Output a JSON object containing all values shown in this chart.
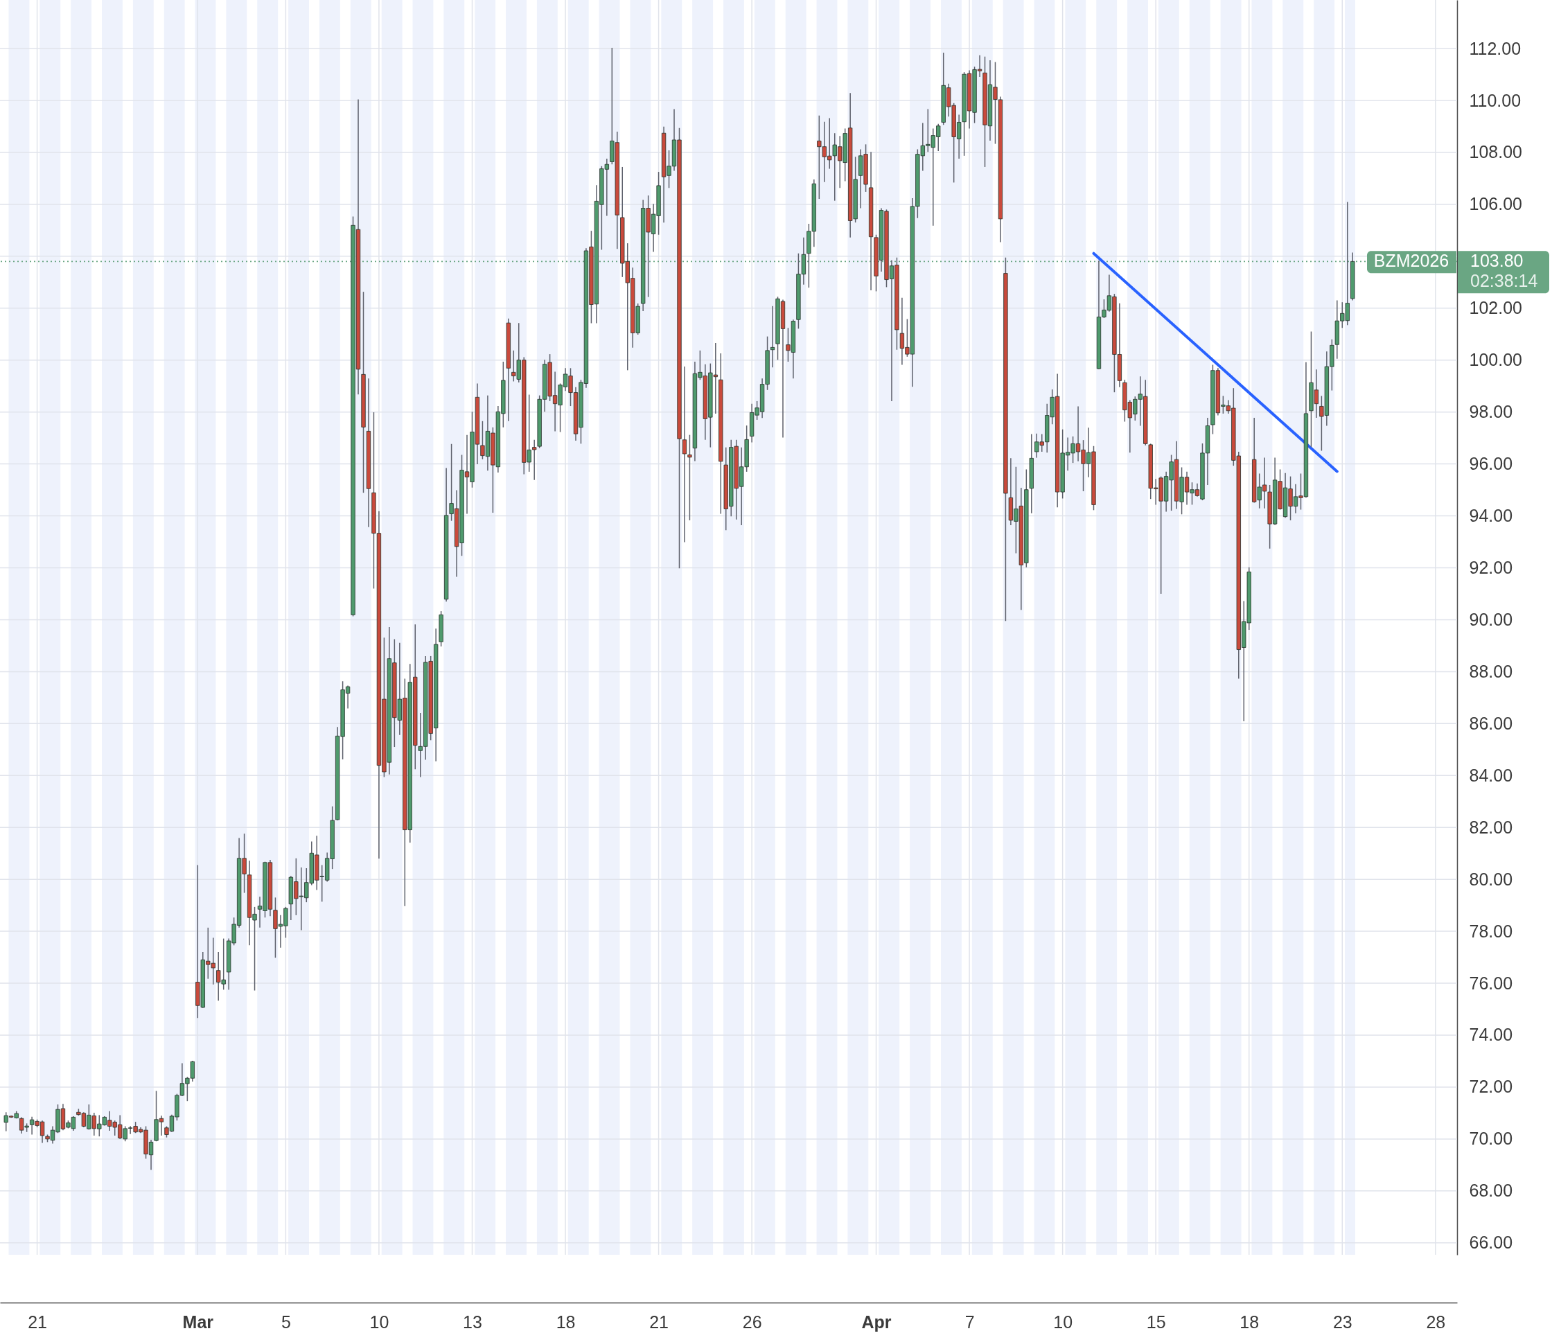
{
  "chart_data": {
    "type": "candlestick",
    "categories": [
      null,
      null,
      null,
      null,
      null,
      null,
      "21",
      null,
      null,
      null,
      null,
      null,
      null,
      null,
      null,
      null,
      null,
      null,
      null,
      null,
      null,
      null,
      null,
      null,
      null,
      null,
      null,
      null,
      null,
      null,
      null,
      null,
      null,
      null,
      null,
      null,
      null,
      "Mar",
      null,
      null,
      null,
      null,
      null,
      null,
      null,
      null,
      null,
      null,
      null,
      null,
      null,
      null,
      null,
      null,
      "5",
      null,
      null,
      null,
      null,
      null,
      null,
      null,
      null,
      null,
      null,
      null,
      null,
      null,
      null,
      null,
      null,
      null,
      "10",
      null,
      null,
      null,
      null,
      null,
      null,
      null,
      null,
      null,
      null,
      null,
      null,
      null,
      null,
      null,
      null,
      null,
      "13",
      null,
      null,
      null,
      null,
      null,
      null,
      null,
      null,
      null,
      null,
      null,
      null,
      null,
      null,
      null,
      null,
      null,
      "18",
      null,
      null,
      null,
      null,
      null,
      null,
      null,
      null,
      null,
      null,
      null,
      null,
      null,
      null,
      null,
      null,
      null,
      "21",
      null,
      null,
      null,
      null,
      null,
      null,
      null,
      null,
      null,
      null,
      null,
      null,
      null,
      null,
      null,
      null,
      null,
      "26",
      null,
      null,
      null,
      null,
      null,
      null,
      null,
      null,
      null,
      null,
      null,
      null,
      null,
      null,
      null,
      null,
      null,
      null,
      null,
      null,
      null,
      null,
      null,
      "Apr",
      null,
      null,
      null,
      null,
      null,
      null,
      null,
      null,
      null,
      null,
      null,
      null,
      null,
      null,
      null,
      null,
      null,
      "7",
      null,
      null,
      null,
      null,
      null,
      null,
      null,
      null,
      null,
      null,
      null,
      null,
      null,
      null,
      null,
      null,
      null,
      "10",
      null,
      null,
      null,
      null,
      null,
      null,
      null,
      null,
      null,
      null,
      null,
      null,
      null,
      null,
      null,
      null,
      null,
      "15",
      null,
      null,
      null,
      null,
      null,
      null,
      null,
      null,
      null,
      null,
      null,
      null,
      null,
      null,
      null,
      null,
      null,
      "18",
      null,
      null,
      null,
      null,
      null,
      null,
      null,
      null,
      null,
      null,
      null,
      null,
      null,
      null,
      null,
      null,
      null,
      "23",
      null,
      null,
      null,
      null,
      null,
      null,
      null,
      null,
      null,
      null,
      null,
      null,
      null,
      null,
      null,
      null,
      null,
      "28",
      null,
      null,
      null
    ],
    "ohlc": [
      [
        70.64,
        71.03,
        70.3,
        70.9
      ],
      [
        70.88,
        70.9,
        70.82,
        70.84
      ],
      [
        70.81,
        71.07,
        70.79,
        70.98
      ],
      [
        70.79,
        70.84,
        70.21,
        70.34
      ],
      [
        70.45,
        70.6,
        70.27,
        70.5
      ],
      [
        70.55,
        70.86,
        70.17,
        70.74
      ],
      [
        70.68,
        70.75,
        70.45,
        70.52
      ],
      [
        70.66,
        70.71,
        69.85,
        70.13
      ],
      [
        70.1,
        70.17,
        69.88,
        70.0
      ],
      [
        69.95,
        70.49,
        69.82,
        70.34
      ],
      [
        70.27,
        71.33,
        70.23,
        71.14
      ],
      [
        71.17,
        71.35,
        70.34,
        70.39
      ],
      [
        70.45,
        70.71,
        70.41,
        70.62
      ],
      [
        70.4,
        70.88,
        70.32,
        70.84
      ],
      [
        71.03,
        71.16,
        70.9,
        70.94
      ],
      [
        70.99,
        71.03,
        70.45,
        70.49
      ],
      [
        70.39,
        71.33,
        70.36,
        70.92
      ],
      [
        70.89,
        71.01,
        70.13,
        70.4
      ],
      [
        70.39,
        70.92,
        70.1,
        70.58
      ],
      [
        70.54,
        70.88,
        70.52,
        70.84
      ],
      [
        70.72,
        71.07,
        70.32,
        70.49
      ],
      [
        70.65,
        70.71,
        70.13,
        70.45
      ],
      [
        70.55,
        70.92,
        70.0,
        70.04
      ],
      [
        70.0,
        70.49,
        69.91,
        70.4
      ],
      [
        70.41,
        70.5,
        70.19,
        70.43
      ],
      [
        70.49,
        70.66,
        70.23,
        70.27
      ],
      [
        70.37,
        70.45,
        70.23,
        70.27
      ],
      [
        70.34,
        70.49,
        69.24,
        69.42
      ],
      [
        69.39,
        69.97,
        68.81,
        69.88
      ],
      [
        69.94,
        71.85,
        69.91,
        70.75
      ],
      [
        70.79,
        70.9,
        70.13,
        70.66
      ],
      [
        70.43,
        70.49,
        70.06,
        70.17
      ],
      [
        70.3,
        70.94,
        70.27,
        70.88
      ],
      [
        70.85,
        71.74,
        70.71,
        71.68
      ],
      [
        71.68,
        72.92,
        71.65,
        72.14
      ],
      [
        72.13,
        72.39,
        71.46,
        72.34
      ],
      [
        72.34,
        73.01,
        72.21,
        72.98
      ],
      [
        76.04,
        80.55,
        74.66,
        75.14
      ],
      [
        75.07,
        77.2,
        75.05,
        76.9
      ],
      [
        76.85,
        78.14,
        76.17,
        76.72
      ],
      [
        76.77,
        77.75,
        75.95,
        76.59
      ],
      [
        76.49,
        77.2,
        75.33,
        76.04
      ],
      [
        75.97,
        77.72,
        75.75,
        76.13
      ],
      [
        76.43,
        77.72,
        75.75,
        77.63
      ],
      [
        77.55,
        78.53,
        77.46,
        78.27
      ],
      [
        78.23,
        81.59,
        78.14,
        80.81
      ],
      [
        80.81,
        81.76,
        79.48,
        80.21
      ],
      [
        80.17,
        80.72,
        77.46,
        78.53
      ],
      [
        78.43,
        78.94,
        75.72,
        78.66
      ],
      [
        78.85,
        79.33,
        78.14,
        78.97
      ],
      [
        78.79,
        80.68,
        78.53,
        80.65
      ],
      [
        80.65,
        80.75,
        78.58,
        78.85
      ],
      [
        78.81,
        79.3,
        76.98,
        78.1
      ],
      [
        78.19,
        78.62,
        77.37,
        78.27
      ],
      [
        78.21,
        78.94,
        77.75,
        78.88
      ],
      [
        79.05,
        80.13,
        78.43,
        80.08
      ],
      [
        79.91,
        80.81,
        78.62,
        79.26
      ],
      [
        79.33,
        80.46,
        78.04,
        79.36
      ],
      [
        79.29,
        80.43,
        79.12,
        79.88
      ],
      [
        79.85,
        81.46,
        79.78,
        81.01
      ],
      [
        80.94,
        81.68,
        79.59,
        79.97
      ],
      [
        80.1,
        80.55,
        79.14,
        80.12
      ],
      [
        79.97,
        81.03,
        79.91,
        80.81
      ],
      [
        80.79,
        82.81,
        80.4,
        82.27
      ],
      [
        82.3,
        85.87,
        82.27,
        85.52
      ],
      [
        85.5,
        87.63,
        84.62,
        87.3
      ],
      [
        87.17,
        87.46,
        86.58,
        87.42
      ],
      [
        90.19,
        105.53,
        90.13,
        105.19
      ],
      [
        105.03,
        110.04,
        98.68,
        99.65
      ],
      [
        99.45,
        102.63,
        94.89,
        97.42
      ],
      [
        97.26,
        99.29,
        93.57,
        95.05
      ],
      [
        94.89,
        97.99,
        91.2,
        93.33
      ],
      [
        93.33,
        94.18,
        80.8,
        84.39
      ],
      [
        86.94,
        89.31,
        83.94,
        84.14
      ],
      [
        84.51,
        89.72,
        84.04,
        88.5
      ],
      [
        88.34,
        89.25,
        85.1,
        86.23
      ],
      [
        86.13,
        89.11,
        85.56,
        86.94
      ],
      [
        86.98,
        87.73,
        78.97,
        81.91
      ],
      [
        81.91,
        88.3,
        81.41,
        87.59
      ],
      [
        87.79,
        89.82,
        84.24,
        85.16
      ],
      [
        84.96,
        86.41,
        83.94,
        85.12
      ],
      [
        85.12,
        88.6,
        84.61,
        88.36
      ],
      [
        88.4,
        88.6,
        85.36,
        85.62
      ],
      [
        85.83,
        89.66,
        84.55,
        89.05
      ],
      [
        89.15,
        90.33,
        88.97,
        90.19
      ],
      [
        90.79,
        95.84,
        90.7,
        94.02
      ],
      [
        94.08,
        96.77,
        93.81,
        94.48
      ],
      [
        94.28,
        94.99,
        91.65,
        92.82
      ],
      [
        92.96,
        96.35,
        92.46,
        95.76
      ],
      [
        95.7,
        97.12,
        94.08,
        95.5
      ],
      [
        95.31,
        98.01,
        95.09,
        97.23
      ],
      [
        98.57,
        99.1,
        95.99,
        96.76
      ],
      [
        96.71,
        97.65,
        96.18,
        96.32
      ],
      [
        96.29,
        98.64,
        95.74,
        97.26
      ],
      [
        97.19,
        97.41,
        94.12,
        95.96
      ],
      [
        95.89,
        98.23,
        95.67,
        98.01
      ],
      [
        97.94,
        99.94,
        97.41,
        99.22
      ],
      [
        101.43,
        101.6,
        97.65,
        99.69
      ],
      [
        99.53,
        100.37,
        99.18,
        99.39
      ],
      [
        99.26,
        101.43,
        99.14,
        100.0
      ],
      [
        100.0,
        100.11,
        95.6,
        96.06
      ],
      [
        96.07,
        98.67,
        95.7,
        96.54
      ],
      [
        96.64,
        96.93,
        95.38,
        96.55
      ],
      [
        96.68,
        98.64,
        96.61,
        98.49
      ],
      [
        98.49,
        100.01,
        98.01,
        99.84
      ],
      [
        99.91,
        100.23,
        98.42,
        98.61
      ],
      [
        98.64,
        99.55,
        97.26,
        98.32
      ],
      [
        98.27,
        99.1,
        97.23,
        99.04
      ],
      [
        98.97,
        99.69,
        98.81,
        99.46
      ],
      [
        99.39,
        99.69,
        98.23,
        98.75
      ],
      [
        98.75,
        98.96,
        96.9,
        97.16
      ],
      [
        97.41,
        99.24,
        96.78,
        99.14
      ],
      [
        99.1,
        104.31,
        98.93,
        104.21
      ],
      [
        104.36,
        104.98,
        101.42,
        102.14
      ],
      [
        102.16,
        106.74,
        101.42,
        106.12
      ],
      [
        105.99,
        107.47,
        104.25,
        107.37
      ],
      [
        107.35,
        107.76,
        105.56,
        107.54
      ],
      [
        107.64,
        112.03,
        107.54,
        108.44
      ],
      [
        108.38,
        108.8,
        104.28,
        105.59
      ],
      [
        105.49,
        107.44,
        103.2,
        103.73
      ],
      [
        103.8,
        104.5,
        99.61,
        102.98
      ],
      [
        103.15,
        103.56,
        100.48,
        101.05
      ],
      [
        101.05,
        102.18,
        100.98,
        102.07
      ],
      [
        102.18,
        106.17,
        101.89,
        105.85
      ],
      [
        105.85,
        106.34,
        102.43,
        104.93
      ],
      [
        104.86,
        106.02,
        104.17,
        105.62
      ],
      [
        105.56,
        107.25,
        104.83,
        106.72
      ],
      [
        108.74,
        108.99,
        105.3,
        107.06
      ],
      [
        107.11,
        108.08,
        106.63,
        107.47
      ],
      [
        107.47,
        109.67,
        107.29,
        108.48
      ],
      [
        108.48,
        108.94,
        91.98,
        96.97
      ],
      [
        96.93,
        99.75,
        92.99,
        96.39
      ],
      [
        96.35,
        97.12,
        93.83,
        96.26
      ],
      [
        96.61,
        99.94,
        96.11,
        99.48
      ],
      [
        99.33,
        100.37,
        99.24,
        99.53
      ],
      [
        99.39,
        99.84,
        96.93,
        97.74
      ],
      [
        97.8,
        99.87,
        96.64,
        99.51
      ],
      [
        99.43,
        100.66,
        97.94,
        99.36
      ],
      [
        99.24,
        100.26,
        94.08,
        96.1
      ],
      [
        95.96,
        96.64,
        93.45,
        94.27
      ],
      [
        94.37,
        96.93,
        93.98,
        96.64
      ],
      [
        96.68,
        96.93,
        93.86,
        95.06
      ],
      [
        95.13,
        96.64,
        93.64,
        95.89
      ],
      [
        95.89,
        97.48,
        95.7,
        96.94
      ],
      [
        97.07,
        98.32,
        96.83,
        97.98
      ],
      [
        97.88,
        98.42,
        97.7,
        98.16
      ],
      [
        98.01,
        99.29,
        97.77,
        99.07
      ],
      [
        99.07,
        100.91,
        98.85,
        100.37
      ],
      [
        100.4,
        102.08,
        99.72,
        100.49
      ],
      [
        100.63,
        102.44,
        100.01,
        102.36
      ],
      [
        102.26,
        102.33,
        97.02,
        101.21
      ],
      [
        100.59,
        101.24,
        99.94,
        100.37
      ],
      [
        100.3,
        101.56,
        99.29,
        101.5
      ],
      [
        101.56,
        104.11,
        101.21,
        103.31
      ],
      [
        103.31,
        104.72,
        102.91,
        104.07
      ],
      [
        104.11,
        105.25,
        102.79,
        104.96
      ],
      [
        104.96,
        106.96,
        104.36,
        106.79
      ],
      [
        108.44,
        109.42,
        106.21,
        108.22
      ],
      [
        108.22,
        109.18,
        106.86,
        107.83
      ],
      [
        107.86,
        109.32,
        107.37,
        107.71
      ],
      [
        107.87,
        108.74,
        106.14,
        108.29
      ],
      [
        108.22,
        108.63,
        106.63,
        107.68
      ],
      [
        107.61,
        108.92,
        106.89,
        108.73
      ],
      [
        108.94,
        110.29,
        104.72,
        105.37
      ],
      [
        105.44,
        107.83,
        105.3,
        106.96
      ],
      [
        107.11,
        108.12,
        105.85,
        107.87
      ],
      [
        107.93,
        108.31,
        106.48,
        106.77
      ],
      [
        106.64,
        108.02,
        102.69,
        104.75
      ],
      [
        104.72,
        104.83,
        102.65,
        103.24
      ],
      [
        103.85,
        105.85,
        103.41,
        105.77
      ],
      [
        105.73,
        105.8,
        102.81,
        103.1
      ],
      [
        103.13,
        103.85,
        98.42,
        103.63
      ],
      [
        103.66,
        103.95,
        100.4,
        101.17
      ],
      [
        101.03,
        102.4,
        99.82,
        100.45
      ],
      [
        100.49,
        101.58,
        100.13,
        100.23
      ],
      [
        100.23,
        106.24,
        98.97,
        105.92
      ],
      [
        105.92,
        108.12,
        105.47,
        107.93
      ],
      [
        107.87,
        109.13,
        107.29,
        108.26
      ],
      [
        108.26,
        109.67,
        108.02,
        108.31
      ],
      [
        108.19,
        108.92,
        105.18,
        108.65
      ],
      [
        108.6,
        109.1,
        108.05,
        109.02
      ],
      [
        109.16,
        111.84,
        109.06,
        110.58
      ],
      [
        110.49,
        110.65,
        109.38,
        109.76
      ],
      [
        109.81,
        109.9,
        106.84,
        108.6
      ],
      [
        108.52,
        109.45,
        107.76,
        109.16
      ],
      [
        109.18,
        111.09,
        107.87,
        111.01
      ],
      [
        111.04,
        111.16,
        108.92,
        109.6
      ],
      [
        109.54,
        111.3,
        109.13,
        111.19
      ],
      [
        111.2,
        111.74,
        110.91,
        111.14
      ],
      [
        111.06,
        111.69,
        107.44,
        109.06
      ],
      [
        109.02,
        111.55,
        108.45,
        110.61
      ],
      [
        110.51,
        111.48,
        108.33,
        110.04
      ],
      [
        110.03,
        110.15,
        104.54,
        105.44
      ],
      [
        103.34,
        103.95,
        89.95,
        94.87
      ],
      [
        94.7,
        96.22,
        93.64,
        93.83
      ],
      [
        93.79,
        95.89,
        92.56,
        94.27
      ],
      [
        94.38,
        95.08,
        90.38,
        92.11
      ],
      [
        92.19,
        95.79,
        92.02,
        95.01
      ],
      [
        95.06,
        97.15,
        94.1,
        96.22
      ],
      [
        96.47,
        97.17,
        96.24,
        96.85
      ],
      [
        96.85,
        97.15,
        96.47,
        96.72
      ],
      [
        96.85,
        98.32,
        96.44,
        97.87
      ],
      [
        97.81,
        98.87,
        97.53,
        98.57
      ],
      [
        98.6,
        99.47,
        94.33,
        94.92
      ],
      [
        94.92,
        97.33,
        94.67,
        96.42
      ],
      [
        96.34,
        97.02,
        95.74,
        96.45
      ],
      [
        96.42,
        97.06,
        96.04,
        96.78
      ],
      [
        96.78,
        98.22,
        96.1,
        96.47
      ],
      [
        96.54,
        96.92,
        94.95,
        96.01
      ],
      [
        96.01,
        97.4,
        95.49,
        96.44
      ],
      [
        96.47,
        96.69,
        94.22,
        94.43
      ],
      [
        99.67,
        103.83,
        99.65,
        101.66
      ],
      [
        101.66,
        102.34,
        101.62,
        101.93
      ],
      [
        101.92,
        103.29,
        101.87,
        102.48
      ],
      [
        102.44,
        102.55,
        98.76,
        100.22
      ],
      [
        100.22,
        102.19,
        98.96,
        99.21
      ],
      [
        99.13,
        99.24,
        97.63,
        98.08
      ],
      [
        98.38,
        98.46,
        96.44,
        97.78
      ],
      [
        97.92,
        98.6,
        97.67,
        98.49
      ],
      [
        98.49,
        99.37,
        97.47,
        98.69
      ],
      [
        98.6,
        99.24,
        96.72,
        96.78
      ],
      [
        96.74,
        96.78,
        94.65,
        95.06
      ],
      [
        95.08,
        95.42,
        94.43,
        95.04
      ],
      [
        95.46,
        95.52,
        91.0,
        94.57
      ],
      [
        94.57,
        95.7,
        94.16,
        95.52
      ],
      [
        95.38,
        96.35,
        94.2,
        96.08
      ],
      [
        96.17,
        96.88,
        94.27,
        94.57
      ],
      [
        94.54,
        95.87,
        94.06,
        95.49
      ],
      [
        95.49,
        95.7,
        94.43,
        94.92
      ],
      [
        94.88,
        95.29,
        94.43,
        95.01
      ],
      [
        95.01,
        95.25,
        94.74,
        94.78
      ],
      [
        94.65,
        96.79,
        94.6,
        96.42
      ],
      [
        96.42,
        97.78,
        95.19,
        97.47
      ],
      [
        97.51,
        99.82,
        97.15,
        99.6
      ],
      [
        99.6,
        99.69,
        97.87,
        97.97
      ],
      [
        98.22,
        98.62,
        97.94,
        98.27
      ],
      [
        98.24,
        98.46,
        97.94,
        98.05
      ],
      [
        98.15,
        98.92,
        95.93,
        96.14
      ],
      [
        96.31,
        96.47,
        87.73,
        88.85
      ],
      [
        88.93,
        90.72,
        86.09,
        89.93
      ],
      [
        89.88,
        92.02,
        89.61,
        91.84
      ],
      [
        96.17,
        97.78,
        94.51,
        94.54
      ],
      [
        94.61,
        95.63,
        94.29,
        95.11
      ],
      [
        95.19,
        96.24,
        94.29,
        94.95
      ],
      [
        94.92,
        95.19,
        92.74,
        93.69
      ],
      [
        93.69,
        96.24,
        93.65,
        95.38
      ],
      [
        95.33,
        95.79,
        94.24,
        94.27
      ],
      [
        93.97,
        95.65,
        93.93,
        95.08
      ],
      [
        95.04,
        95.52,
        93.83,
        94.37
      ],
      [
        94.37,
        95.22,
        94.1,
        94.74
      ],
      [
        94.77,
        95.63,
        94.24,
        94.7
      ],
      [
        94.74,
        99.92,
        94.7,
        97.94
      ],
      [
        98.05,
        101.1,
        96.65,
        99.13
      ],
      [
        98.85,
        99.64,
        97.78,
        98.32
      ],
      [
        98.22,
        98.62,
        96.51,
        97.83
      ],
      [
        97.87,
        100.33,
        97.47,
        99.75
      ],
      [
        99.75,
        100.8,
        98.83,
        100.57
      ],
      [
        100.6,
        102.3,
        100.05,
        101.51
      ],
      [
        101.51,
        102.23,
        101.24,
        101.8
      ],
      [
        101.52,
        106.09,
        101.35,
        102.19
      ],
      [
        102.37,
        104.14,
        102.3,
        103.8
      ],
      null,
      null,
      null,
      null,
      null,
      null,
      null,
      null,
      null,
      null,
      null,
      null,
      null,
      null,
      null,
      null,
      null,
      null,
      null
    ],
    "colors": [
      "#4f9a6d",
      "#c94a3c",
      "#4f9a6d",
      "#c94a3c",
      "#4f9a6d",
      "#4f9a6d",
      "#c94a3c",
      "#c94a3c",
      "#c94a3c",
      "#4f9a6d",
      "#4f9a6d",
      "#c94a3c",
      "#4f9a6d",
      "#4f9a6d",
      "#c94a3c",
      "#c94a3c",
      "#4f9a6d",
      "#c94a3c",
      "#4f9a6d",
      "#4f9a6d",
      "#c94a3c",
      "#c94a3c",
      "#c94a3c",
      "#4f9a6d",
      "#4f9a6d",
      "#c94a3c",
      "#c94a3c",
      "#c94a3c",
      "#4f9a6d",
      "#4f9a6d",
      "#c94a3c",
      "#c94a3c",
      "#4f9a6d",
      "#4f9a6d",
      "#4f9a6d",
      "#4f9a6d",
      "#4f9a6d",
      "#c94a3c",
      "#4f9a6d",
      "#c94a3c",
      "#c94a3c",
      "#c94a3c",
      "#4f9a6d",
      "#4f9a6d",
      "#4f9a6d",
      "#4f9a6d",
      "#c94a3c",
      "#c94a3c",
      "#4f9a6d",
      "#4f9a6d",
      "#4f9a6d",
      "#c94a3c",
      "#c94a3c",
      "#4f9a6d",
      "#4f9a6d",
      "#4f9a6d",
      "#c94a3c",
      "#4f9a6d",
      "#4f9a6d",
      "#4f9a6d",
      "#c94a3c",
      "#4f9a6d",
      "#4f9a6d",
      "#4f9a6d",
      "#4f9a6d",
      "#4f9a6d",
      "#4f9a6d",
      "#4f9a6d",
      "#c94a3c",
      "#c94a3c",
      "#c94a3c",
      "#c94a3c",
      "#c94a3c",
      "#c94a3c",
      "#4f9a6d",
      "#c94a3c",
      "#4f9a6d",
      "#c94a3c",
      "#4f9a6d",
      "#c94a3c",
      "#4f9a6d",
      "#4f9a6d",
      "#c94a3c",
      "#4f9a6d",
      "#4f9a6d",
      "#4f9a6d",
      "#4f9a6d",
      "#c94a3c",
      "#4f9a6d",
      "#c94a3c",
      "#4f9a6d",
      "#c94a3c",
      "#c94a3c",
      "#4f9a6d",
      "#c94a3c",
      "#4f9a6d",
      "#4f9a6d",
      "#c94a3c",
      "#c94a3c",
      "#4f9a6d",
      "#c94a3c",
      "#4f9a6d",
      "#c94a3c",
      "#4f9a6d",
      "#4f9a6d",
      "#c94a3c",
      "#c94a3c",
      "#4f9a6d",
      "#4f9a6d",
      "#c94a3c",
      "#c94a3c",
      "#4f9a6d",
      "#4f9a6d",
      "#c94a3c",
      "#4f9a6d",
      "#4f9a6d",
      "#4f9a6d",
      "#4f9a6d",
      "#c94a3c",
      "#c94a3c",
      "#c94a3c",
      "#c94a3c",
      "#4f9a6d",
      "#4f9a6d",
      "#c94a3c",
      "#4f9a6d",
      "#4f9a6d",
      "#c94a3c",
      "#4f9a6d",
      "#4f9a6d",
      "#c94a3c",
      "#c94a3c",
      "#c94a3c",
      "#4f9a6d",
      "#4f9a6d",
      "#c94a3c",
      "#4f9a6d",
      "#c94a3c",
      "#c94a3c",
      "#c94a3c",
      "#4f9a6d",
      "#c94a3c",
      "#4f9a6d",
      "#4f9a6d",
      "#4f9a6d",
      "#4f9a6d",
      "#4f9a6d",
      "#4f9a6d",
      "#4f9a6d",
      "#4f9a6d",
      "#c94a3c",
      "#c94a3c",
      "#4f9a6d",
      "#4f9a6d",
      "#4f9a6d",
      "#4f9a6d",
      "#4f9a6d",
      "#c94a3c",
      "#c94a3c",
      "#c94a3c",
      "#4f9a6d",
      "#c94a3c",
      "#4f9a6d",
      "#c94a3c",
      "#4f9a6d",
      "#4f9a6d",
      "#c94a3c",
      "#c94a3c",
      "#c94a3c",
      "#4f9a6d",
      "#c94a3c",
      "#4f9a6d",
      "#c94a3c",
      "#c94a3c",
      "#c94a3c",
      "#4f9a6d",
      "#4f9a6d",
      "#4f9a6d",
      "#4f9a6d",
      "#4f9a6d",
      "#4f9a6d",
      "#4f9a6d",
      "#c94a3c",
      "#c94a3c",
      "#4f9a6d",
      "#4f9a6d",
      "#c94a3c",
      "#4f9a6d",
      "#c94a3c",
      "#c94a3c",
      "#4f9a6d",
      "#c94a3c",
      "#c94a3c",
      "#c94a3c",
      "#c94a3c",
      "#4f9a6d",
      "#c94a3c",
      "#4f9a6d",
      "#4f9a6d",
      "#4f9a6d",
      "#c94a3c",
      "#4f9a6d",
      "#4f9a6d",
      "#c94a3c",
      "#4f9a6d",
      "#4f9a6d",
      "#4f9a6d",
      "#c94a3c",
      "#c94a3c",
      "#4f9a6d",
      "#c94a3c",
      "#4f9a6d",
      "#4f9a6d",
      "#4f9a6d",
      "#c94a3c",
      "#c94a3c",
      "#c94a3c",
      "#c94a3c",
      "#4f9a6d",
      "#4f9a6d",
      "#c94a3c",
      "#c94a3c",
      "#c94a3c",
      "#c94a3c",
      "#4f9a6d",
      "#4f9a6d",
      "#c94a3c",
      "#4f9a6d",
      "#c94a3c",
      "#4f9a6d",
      "#c94a3c",
      "#4f9a6d",
      "#4f9a6d",
      "#4f9a6d",
      "#c94a3c",
      "#4f9a6d",
      "#c94a3c",
      "#c94a3c",
      "#c94a3c",
      "#4f9a6d",
      "#4f9a6d",
      "#c94a3c",
      "#4f9a6d",
      "#c94a3c",
      "#c94a3c",
      "#4f9a6d",
      "#c94a3c",
      "#4f9a6d",
      "#c94a3c",
      "#4f9a6d",
      "#c94a3c",
      "#4f9a6d",
      "#4f9a6d",
      "#c94a3c",
      "#c94a3c",
      "#4f9a6d",
      "#4f9a6d",
      "#4f9a6d",
      "#4f9a6d",
      "#4f9a6d",
      "#4f9a6d",
      null,
      null,
      null,
      null,
      null,
      null,
      null,
      null,
      null,
      null,
      null,
      null,
      null,
      null,
      null,
      null,
      null,
      null,
      null
    ],
    "series": [
      {
        "type": "line",
        "color": "#2962ff",
        "values": [
          null,
          null,
          null,
          null,
          null,
          null,
          null,
          null,
          null,
          null,
          null,
          null,
          null,
          null,
          null,
          null,
          null,
          null,
          null,
          null,
          null,
          null,
          null,
          null,
          null,
          null,
          null,
          null,
          null,
          null,
          null,
          null,
          null,
          null,
          null,
          null,
          null,
          null,
          null,
          null,
          null,
          null,
          null,
          null,
          null,
          null,
          null,
          null,
          null,
          null,
          null,
          null,
          null,
          null,
          null,
          null,
          null,
          null,
          null,
          null,
          null,
          null,
          null,
          null,
          null,
          null,
          null,
          null,
          null,
          null,
          null,
          null,
          null,
          null,
          null,
          null,
          null,
          null,
          null,
          null,
          null,
          null,
          null,
          null,
          null,
          null,
          null,
          null,
          null,
          null,
          null,
          null,
          null,
          null,
          null,
          null,
          null,
          null,
          null,
          null,
          null,
          null,
          null,
          null,
          null,
          null,
          null,
          null,
          null,
          null,
          null,
          null,
          null,
          null,
          null,
          null,
          null,
          null,
          null,
          null,
          null,
          null,
          null,
          null,
          null,
          null,
          null,
          null,
          null,
          null,
          null,
          null,
          null,
          null,
          null,
          null,
          null,
          null,
          null,
          null,
          null,
          null,
          null,
          null,
          null,
          null,
          null,
          null,
          null,
          null,
          null,
          null,
          null,
          null,
          null,
          null,
          null,
          null,
          null,
          null,
          null,
          null,
          null,
          null,
          null,
          null,
          null,
          null,
          null,
          null,
          null,
          null,
          null,
          null,
          null,
          null,
          null,
          null,
          null,
          null,
          null,
          null,
          null,
          null,
          null,
          null,
          null,
          null,
          null,
          null,
          null,
          null,
          null,
          null,
          null,
          null,
          null,
          null,
          null,
          null,
          null,
          null,
          null,
          null,
          null,
          null,
          null,
          null,
          null,
          null,
          104.11,
          null,
          null,
          null,
          null,
          null,
          null,
          null,
          null,
          null,
          null,
          null,
          null,
          null,
          null,
          null,
          null,
          null,
          null,
          null,
          null,
          null,
          null,
          null,
          null,
          null,
          null,
          null,
          null,
          null,
          null,
          null,
          null,
          null,
          null,
          null,
          null,
          null,
          null,
          null,
          null,
          null,
          null,
          null,
          null,
          null,
          null,
          95.71,
          null,
          null,
          null,
          null,
          null,
          null,
          null,
          null,
          null,
          null,
          null,
          null,
          null,
          null,
          null,
          null,
          null,
          null,
          null,
          null,
          null,
          null
        ]
      }
    ],
    "ylim": [
      65.54,
      113.87
    ],
    "yticks": [
      {
        "value": 66,
        "label": "66.00"
      },
      {
        "value": 68,
        "label": "68.00"
      },
      {
        "value": 70,
        "label": "70.00"
      },
      {
        "value": 72,
        "label": "72.00"
      },
      {
        "value": 74,
        "label": "74.00"
      },
      {
        "value": 76,
        "label": "76.00"
      },
      {
        "value": 78,
        "label": "78.00"
      },
      {
        "value": 80,
        "label": "80.00"
      },
      {
        "value": 82,
        "label": "82.00"
      },
      {
        "value": 84,
        "label": "84.00"
      },
      {
        "value": 86,
        "label": "86.00"
      },
      {
        "value": 88,
        "label": "88.00"
      },
      {
        "value": 90,
        "label": "90.00"
      },
      {
        "value": 92,
        "label": "92.00"
      },
      {
        "value": 94,
        "label": "94.00"
      },
      {
        "value": 96,
        "label": "96.00"
      },
      {
        "value": 98,
        "label": "98.00"
      },
      {
        "value": 100,
        "label": "100.00"
      },
      {
        "value": 102,
        "label": "102.00"
      },
      {
        "value": 104,
        "label": null
      },
      {
        "value": 106,
        "label": "106.00"
      },
      {
        "value": 108,
        "label": "108.00"
      },
      {
        "value": 110,
        "label": "110.00"
      },
      {
        "value": 112,
        "label": "112.00"
      }
    ],
    "grid": true,
    "ref_lines": [
      {
        "axis": "y",
        "value": 103.8,
        "label": "103.80",
        "color": "#6aa683",
        "line_style": "dotted"
      }
    ],
    "annotations": [
      {
        "text": "BZM2026",
        "y": 103.8
      },
      "02:38:14"
    ]
  }
}
